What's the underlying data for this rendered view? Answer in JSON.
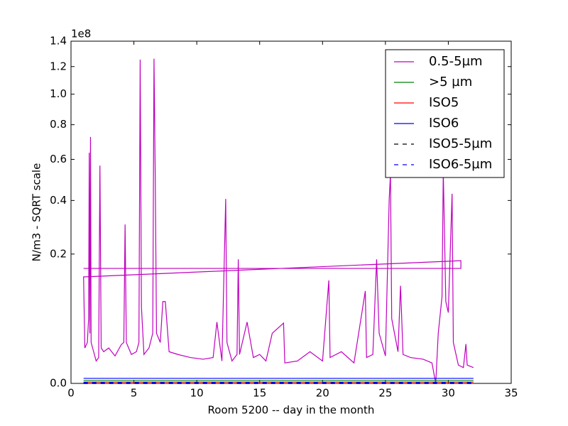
{
  "chart_data": {
    "type": "line",
    "xlabel": "Room 5200 -- day in the month",
    "ylabel": "N/m3 - SQRT scale",
    "offset_label": "1e8",
    "yscale": "sqrt",
    "xlim": [
      0,
      35
    ],
    "xticks": [
      0,
      5,
      10,
      15,
      20,
      25,
      30,
      35
    ],
    "ylim": [
      0,
      1.4
    ],
    "yticks": [
      {
        "value": 0,
        "label": "0.0"
      },
      {
        "value": 0.2,
        "label": "0.2"
      },
      {
        "value": 0.4,
        "label": "0.4"
      },
      {
        "value": 0.6,
        "label": "0.6"
      },
      {
        "value": 0.8,
        "label": "0.8"
      },
      {
        "value": 1.0,
        "label": "1.0"
      },
      {
        "value": 1.2,
        "label": "1.2"
      },
      {
        "value": 1.4,
        "label": "1.4"
      }
    ],
    "legend": "upper right",
    "series": [
      {
        "name": "0.5-5µm",
        "color": "#bf00bf",
        "linestyle": "solid",
        "x": [
          1,
          31,
          31,
          1,
          1.1,
          1.3,
          1.4,
          1.45,
          1.5,
          1.55,
          1.6,
          1.8,
          2.0,
          2.2,
          2.3,
          2.4,
          2.6,
          3.0,
          3.5,
          4.0,
          4.2,
          4.3,
          4.4,
          4.8,
          5.2,
          5.4,
          5.5,
          5.6,
          5.8,
          6.2,
          6.5,
          6.6,
          6.7,
          6.8,
          7.1,
          7.3,
          7.5,
          7.8,
          8.5,
          9.5,
          10.5,
          11.3,
          11.6,
          12.0,
          12.3,
          12.4,
          12.8,
          13.2,
          13.3,
          13.4,
          14.0,
          14.5,
          15.0,
          15.5,
          16.0,
          16.9,
          17.0,
          18.0,
          19.0,
          20.0,
          20.5,
          20.6,
          21.5,
          22.5,
          23.4,
          23.5,
          24.0,
          24.3,
          24.5,
          25.0,
          25.3,
          25.4,
          25.5,
          26.0,
          26.2,
          26.4,
          27.0,
          28.0,
          28.7,
          29.0,
          29.2,
          29.5,
          29.6,
          29.8,
          30.0,
          30.3,
          30.4,
          30.8,
          31.2,
          31.4,
          31.5,
          32
        ],
        "values": [
          0.158,
          0.158,
          0.18,
          0.1356,
          0.015,
          0.02,
          0.05,
          0.636,
          0.03,
          0.726,
          0.02,
          0.012,
          0.006,
          0.008,
          0.567,
          0.015,
          0.012,
          0.015,
          0.009,
          0.018,
          0.02,
          0.302,
          0.02,
          0.01,
          0.012,
          0.02,
          1.253,
          0.07,
          0.01,
          0.015,
          0.03,
          1.26,
          0.497,
          0.03,
          0.02,
          0.08,
          0.08,
          0.012,
          0.01,
          0.008,
          0.007,
          0.008,
          0.045,
          0.006,
          0.407,
          0.02,
          0.006,
          0.01,
          0.184,
          0.01,
          0.045,
          0.008,
          0.01,
          0.006,
          0.03,
          0.0435,
          0.005,
          0.006,
          0.012,
          0.006,
          0.127,
          0.008,
          0.012,
          0.005,
          0.102,
          0.008,
          0.01,
          0.184,
          0.03,
          0.009,
          0.407,
          0.524,
          0.05,
          0.012,
          0.114,
          0.01,
          0.008,
          0.007,
          0.005,
          0,
          0.03,
          0.09,
          0.54,
          0.08,
          0.06,
          0.43,
          0.02,
          0.004,
          0.003,
          0.0185,
          0.004,
          0.003
        ]
      },
      {
        "name": ">5 µm",
        "color": "#008000",
        "linestyle": "solid",
        "x": [
          1,
          32
        ],
        "values": [
          0.0001,
          0.0001
        ]
      },
      {
        "name": "ISO5",
        "color": "#ff0000",
        "linestyle": "solid",
        "x": [
          1,
          32
        ],
        "values": [
          2e-05,
          2e-05
        ]
      },
      {
        "name": "ISO6",
        "color": "#0000ff",
        "linestyle": "solid",
        "x": [
          1,
          32
        ],
        "values": [
          0.0003,
          0.0003
        ]
      },
      {
        "name": "ISO5-5µm",
        "color": "#000000",
        "linestyle": "dashed",
        "x": [
          1,
          32
        ],
        "values": [
          0,
          0
        ]
      },
      {
        "name": "ISO6-5µm",
        "color": "#0000ff",
        "linestyle": "dashed",
        "x": [
          1,
          32
        ],
        "values": [
          1e-05,
          1e-05
        ]
      }
    ]
  }
}
